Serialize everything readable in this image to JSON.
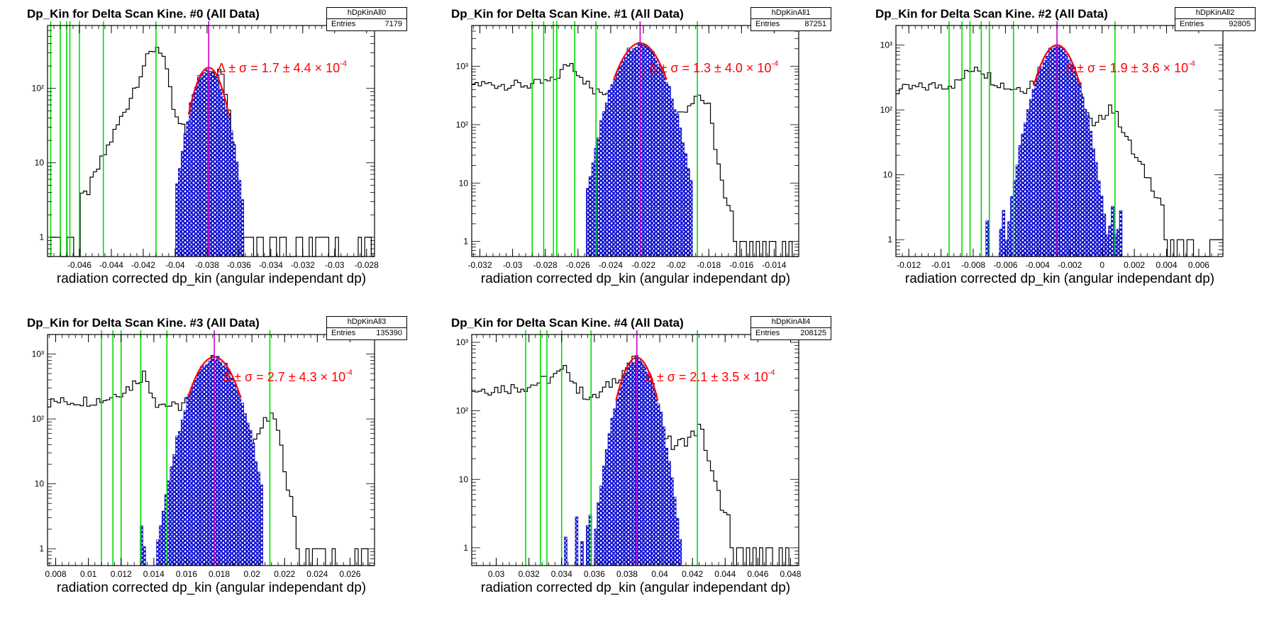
{
  "colors": {
    "data_hist": "#000000",
    "peak_hist": "#0000cc",
    "fit": "#ff0000",
    "center": "#cc00cc",
    "cuts": "#00dd00"
  },
  "x_axis_label": "radiation corrected dp_kin (angular independant dp)",
  "delta_symbol": "Δ ± σ",
  "chart_data": [
    {
      "type": "histogram",
      "y_scale": "log",
      "title": "Dp_Kin for Delta Scan Kine. #0 (All Data)",
      "stats": {
        "name": "hDpKinAll0",
        "label": "Entries",
        "entries": "7179"
      },
      "xlabel": "radiation corrected dp_kin (angular independant dp)",
      "xlim": [
        -0.048,
        -0.0275
      ],
      "ylim": [
        0.55,
        700
      ],
      "x_ticks": [
        -0.046,
        -0.044,
        -0.042,
        -0.04,
        -0.038,
        -0.036,
        -0.034,
        -0.032,
        -0.03,
        -0.028
      ],
      "x_tick_labels": [
        "-0.046",
        "-0.044",
        "-0.042",
        "-0.04",
        "-0.038",
        "-0.036",
        "-0.034",
        "-0.032",
        "-0.03",
        "-0.028"
      ],
      "y_ticks": [
        1,
        10,
        100
      ],
      "y_tick_labels": [
        "1",
        "10",
        "10²"
      ],
      "peak_mean": -0.0379,
      "peak_sigma": 0.00074,
      "peak_height": 190,
      "peak_range": [
        -0.0398,
        -0.0358
      ],
      "fit_label": "= 1.7 ± 4.4 × 10",
      "fit_exponent": "-4",
      "cut_lines": [
        -0.0478,
        -0.0472,
        -0.0468,
        -0.0466,
        -0.046,
        -0.0445,
        -0.0412
      ],
      "center_line": -0.0379,
      "main_profile": [
        [
          -0.048,
          1
        ],
        [
          -0.0455,
          4
        ],
        [
          -0.0445,
          12
        ],
        [
          -0.043,
          60
        ],
        [
          -0.042,
          200
        ],
        [
          -0.0412,
          380
        ],
        [
          -0.0408,
          320
        ],
        [
          -0.04,
          40
        ],
        [
          -0.039,
          20
        ],
        [
          -0.0385,
          45
        ],
        [
          -0.0378,
          190
        ],
        [
          -0.037,
          150
        ],
        [
          -0.0365,
          30
        ],
        [
          -0.036,
          2
        ],
        [
          -0.0345,
          1
        ],
        [
          -0.0275,
          1
        ]
      ]
    },
    {
      "type": "histogram",
      "y_scale": "log",
      "title": "Dp_Kin for Delta Scan Kine. #1 (All Data)",
      "stats": {
        "name": "hDpKinAll1",
        "label": "Entries",
        "entries": "87251"
      },
      "xlabel": "radiation corrected dp_kin (angular independant dp)",
      "xlim": [
        -0.0325,
        -0.0125
      ],
      "ylim": [
        0.55,
        5000
      ],
      "x_ticks": [
        -0.032,
        -0.03,
        -0.028,
        -0.026,
        -0.024,
        -0.022,
        -0.02,
        -0.018,
        -0.016,
        -0.014
      ],
      "x_tick_labels": [
        "-0.032",
        "-0.03",
        "-0.028",
        "-0.026",
        "-0.024",
        "-0.022",
        "-0.02",
        "-0.018",
        "-0.016",
        "-0.014"
      ],
      "y_ticks": [
        1,
        10,
        100,
        1000
      ],
      "y_tick_labels": [
        "1",
        "10",
        "10²",
        "10³"
      ],
      "peak_mean": -0.0222,
      "peak_sigma": 0.00095,
      "peak_height": 2500,
      "peak_range": [
        -0.0255,
        -0.0191
      ],
      "fit_label": "= 1.3 ± 4.0 × 10",
      "fit_exponent": "-4",
      "cut_lines": [
        -0.0288,
        -0.0281,
        -0.0275,
        -0.0273,
        -0.0262,
        -0.0249,
        -0.0187
      ],
      "center_line": -0.0222,
      "main_profile": [
        [
          -0.0325,
          500
        ],
        [
          -0.029,
          480
        ],
        [
          -0.0275,
          560
        ],
        [
          -0.0265,
          1200
        ],
        [
          -0.0258,
          700
        ],
        [
          -0.025,
          350
        ],
        [
          -0.024,
          380
        ],
        [
          -0.0232,
          600
        ],
        [
          -0.0222,
          2500
        ],
        [
          -0.021,
          300
        ],
        [
          -0.0202,
          120
        ],
        [
          -0.0195,
          180
        ],
        [
          -0.0187,
          350
        ],
        [
          -0.018,
          200
        ],
        [
          -0.0175,
          30
        ],
        [
          -0.017,
          5
        ],
        [
          -0.016,
          1.2
        ],
        [
          -0.0125,
          1
        ]
      ]
    },
    {
      "type": "histogram",
      "y_scale": "log",
      "title": "Dp_Kin for Delta Scan Kine. #2 (All Data)",
      "stats": {
        "name": "hDpKinAll2",
        "label": "Entries",
        "entries": "92805"
      },
      "xlabel": "radiation corrected dp_kin (angular independant dp)",
      "xlim": [
        -0.0128,
        0.0075
      ],
      "ylim": [
        0.55,
        2000
      ],
      "x_ticks": [
        -0.012,
        -0.01,
        -0.008,
        -0.006,
        -0.004,
        -0.002,
        0,
        0.002,
        0.004,
        0.006
      ],
      "x_tick_labels": [
        "-0.012",
        "-0.01",
        "-0.008",
        "-0.006",
        "-0.004",
        "-0.002",
        "0",
        "0.002",
        "0.004",
        "0.006"
      ],
      "y_ticks": [
        1,
        10,
        100,
        1000
      ],
      "y_tick_labels": [
        "1",
        "10",
        "10²",
        "10³"
      ],
      "peak_mean": -0.0028,
      "peak_sigma": 0.00085,
      "peak_height": 1000,
      "peak_range": [
        -0.0072,
        0.0012
      ],
      "fit_label": "= 1.9 ± 3.6 × 10",
      "fit_exponent": "-4",
      "cut_lines": [
        -0.0095,
        -0.0087,
        -0.0082,
        -0.0075,
        -0.007,
        -0.0055,
        0.0008
      ],
      "center_line": -0.0028,
      "main_profile": [
        [
          -0.0128,
          200
        ],
        [
          -0.009,
          260
        ],
        [
          -0.0078,
          500
        ],
        [
          -0.0068,
          300
        ],
        [
          -0.0058,
          220
        ],
        [
          -0.0048,
          220
        ],
        [
          -0.0038,
          350
        ],
        [
          -0.0028,
          1000
        ],
        [
          -0.0015,
          200
        ],
        [
          -0.0005,
          50
        ],
        [
          0.0005,
          120
        ],
        [
          0.0012,
          60
        ],
        [
          0.002,
          20
        ],
        [
          0.003,
          8
        ],
        [
          0.0045,
          1.5
        ],
        [
          0.0075,
          1
        ]
      ]
    },
    {
      "type": "histogram",
      "y_scale": "log",
      "title": "Dp_Kin for Delta Scan Kine. #3 (All Data)",
      "stats": {
        "name": "hDpKinAll3",
        "label": "Entries",
        "entries": "135390"
      },
      "xlabel": "radiation corrected dp_kin (angular independant dp)",
      "xlim": [
        0.0075,
        0.0275
      ],
      "ylim": [
        0.55,
        2000
      ],
      "x_ticks": [
        0.008,
        0.01,
        0.012,
        0.014,
        0.016,
        0.018,
        0.02,
        0.022,
        0.024,
        0.026
      ],
      "x_tick_labels": [
        "0.008",
        "0.01",
        "0.012",
        "0.014",
        "0.016",
        "0.018",
        "0.02",
        "0.022",
        "0.024",
        "0.026"
      ],
      "y_ticks": [
        1,
        10,
        100,
        1000
      ],
      "y_tick_labels": [
        "1",
        "10",
        "10²",
        "10³"
      ],
      "peak_mean": 0.0177,
      "peak_sigma": 0.00095,
      "peak_height": 900,
      "peak_range": [
        0.0132,
        0.0205
      ],
      "fit_label": "= 2.7 ± 4.3 × 10",
      "fit_exponent": "-4",
      "cut_lines": [
        0.0108,
        0.0115,
        0.012,
        0.0132,
        0.0148,
        0.0211
      ],
      "center_line": 0.0177,
      "main_profile": [
        [
          0.0075,
          180
        ],
        [
          0.011,
          200
        ],
        [
          0.0126,
          320
        ],
        [
          0.0134,
          500
        ],
        [
          0.0142,
          180
        ],
        [
          0.0155,
          150
        ],
        [
          0.0165,
          250
        ],
        [
          0.0177,
          900
        ],
        [
          0.0192,
          100
        ],
        [
          0.02,
          40
        ],
        [
          0.0208,
          90
        ],
        [
          0.0214,
          110
        ],
        [
          0.0222,
          10
        ],
        [
          0.0228,
          2
        ],
        [
          0.0238,
          1
        ],
        [
          0.0275,
          1
        ]
      ]
    },
    {
      "type": "histogram",
      "y_scale": "log",
      "title": "Dp_Kin for Delta Scan Kine. #4 (All Data)",
      "stats": {
        "name": "hDpKinAll4",
        "label": "Entries",
        "entries": "208125"
      },
      "xlabel": "radiation corrected dp_kin (angular independant dp)",
      "xlim": [
        0.0285,
        0.0485
      ],
      "ylim": [
        0.55,
        1300
      ],
      "x_ticks": [
        0.03,
        0.032,
        0.034,
        0.036,
        0.038,
        0.04,
        0.042,
        0.044,
        0.046,
        0.048
      ],
      "x_tick_labels": [
        "0.03",
        "0.032",
        "0.034",
        "0.036",
        "0.038",
        "0.04",
        "0.042",
        "0.044",
        "0.046",
        "0.048"
      ],
      "y_ticks": [
        1,
        10,
        100,
        1000
      ],
      "y_tick_labels": [
        "1",
        "10",
        "10²",
        "10³"
      ],
      "peak_mean": 0.0386,
      "peak_sigma": 0.00075,
      "peak_height": 600,
      "peak_range": [
        0.0342,
        0.0412
      ],
      "fit_label": "= 2.1 ± 3.5 × 10",
      "fit_exponent": "-4",
      "cut_lines": [
        0.0318,
        0.0327,
        0.0331,
        0.034,
        0.0358,
        0.0423
      ],
      "center_line": 0.0386,
      "main_profile": [
        [
          0.0285,
          200
        ],
        [
          0.032,
          230
        ],
        [
          0.0336,
          320
        ],
        [
          0.0344,
          420
        ],
        [
          0.035,
          200
        ],
        [
          0.036,
          150
        ],
        [
          0.037,
          250
        ],
        [
          0.0386,
          600
        ],
        [
          0.0398,
          80
        ],
        [
          0.0408,
          30
        ],
        [
          0.0418,
          40
        ],
        [
          0.0425,
          60
        ],
        [
          0.0432,
          12
        ],
        [
          0.044,
          3
        ],
        [
          0.0452,
          1.5
        ],
        [
          0.0485,
          1
        ]
      ]
    }
  ]
}
